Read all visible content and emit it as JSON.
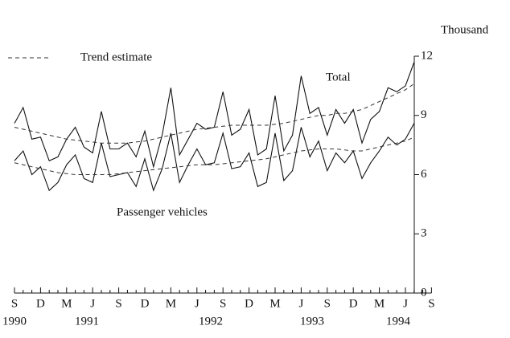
{
  "chart_data": {
    "type": "line",
    "y_axis_label": "Thousand",
    "trend_label": "Trend estimate",
    "categories": [
      "S",
      null,
      null,
      "D",
      null,
      null,
      "M",
      null,
      null,
      "J",
      null,
      null,
      "S",
      null,
      null,
      "D",
      null,
      null,
      "M",
      null,
      null,
      "J",
      null,
      null,
      "S",
      null,
      null,
      "D",
      null,
      null,
      "M",
      null,
      null,
      "J",
      null,
      null,
      "S",
      null,
      null,
      "D",
      null,
      null,
      "M",
      null,
      null,
      "J",
      null,
      null,
      "S"
    ],
    "year_labels": [
      "1990",
      "1991",
      "1992",
      "1993",
      "1994"
    ],
    "series": [
      {
        "name": "Total",
        "color": "#111111",
        "values": [
          8.6,
          9.4,
          7.8,
          7.9,
          6.7,
          6.9,
          7.8,
          8.4,
          7.4,
          7.1,
          9.2,
          7.3,
          7.3,
          7.6,
          6.9,
          8.2,
          6.4,
          8.0,
          10.4,
          7.0,
          7.8,
          8.6,
          8.3,
          8.4,
          10.2,
          8.0,
          8.3,
          9.3,
          7.0,
          7.3,
          10.0,
          7.2,
          8.0,
          11.0,
          9.1,
          9.4,
          8.0,
          9.3,
          8.6,
          9.3,
          7.6,
          8.8,
          9.2,
          10.4,
          10.2,
          10.5,
          11.7,
          null,
          null
        ],
        "trend": [
          8.4,
          8.3,
          8.2,
          8.1,
          8.0,
          7.9,
          7.8,
          7.75,
          7.7,
          7.65,
          7.6,
          7.6,
          7.6,
          7.6,
          7.65,
          7.7,
          7.8,
          7.9,
          8.0,
          8.1,
          8.2,
          8.3,
          8.35,
          8.4,
          8.45,
          8.5,
          8.5,
          8.5,
          8.5,
          8.5,
          8.55,
          8.6,
          8.7,
          8.8,
          8.9,
          9.0,
          9.0,
          9.1,
          9.1,
          9.2,
          9.3,
          9.5,
          9.7,
          9.9,
          10.1,
          10.3,
          10.6,
          null,
          null
        ]
      },
      {
        "name": "Passenger vehicles",
        "color": "#111111",
        "values": [
          6.7,
          7.2,
          6.0,
          6.4,
          5.2,
          5.6,
          6.5,
          7.0,
          5.8,
          5.6,
          7.6,
          5.9,
          6.0,
          6.1,
          5.4,
          6.8,
          5.2,
          6.3,
          8.1,
          5.6,
          6.5,
          7.3,
          6.5,
          6.6,
          8.1,
          6.3,
          6.4,
          7.1,
          5.4,
          5.6,
          8.1,
          5.7,
          6.2,
          8.4,
          6.9,
          7.7,
          6.2,
          7.1,
          6.6,
          7.2,
          5.8,
          6.6,
          7.2,
          7.9,
          7.5,
          7.8,
          8.6,
          null,
          null
        ],
        "trend": [
          6.6,
          6.5,
          6.4,
          6.3,
          6.2,
          6.1,
          6.05,
          6.0,
          6.0,
          6.0,
          6.0,
          6.0,
          6.05,
          6.1,
          6.15,
          6.2,
          6.25,
          6.3,
          6.35,
          6.4,
          6.45,
          6.5,
          6.5,
          6.5,
          6.55,
          6.6,
          6.65,
          6.7,
          6.75,
          6.8,
          6.9,
          7.0,
          7.1,
          7.2,
          7.25,
          7.3,
          7.3,
          7.3,
          7.25,
          7.2,
          7.2,
          7.3,
          7.4,
          7.5,
          7.6,
          7.7,
          7.9,
          null,
          null
        ]
      }
    ],
    "ylim": [
      0,
      12
    ],
    "yticks": [
      0,
      3,
      6,
      9,
      12
    ]
  }
}
